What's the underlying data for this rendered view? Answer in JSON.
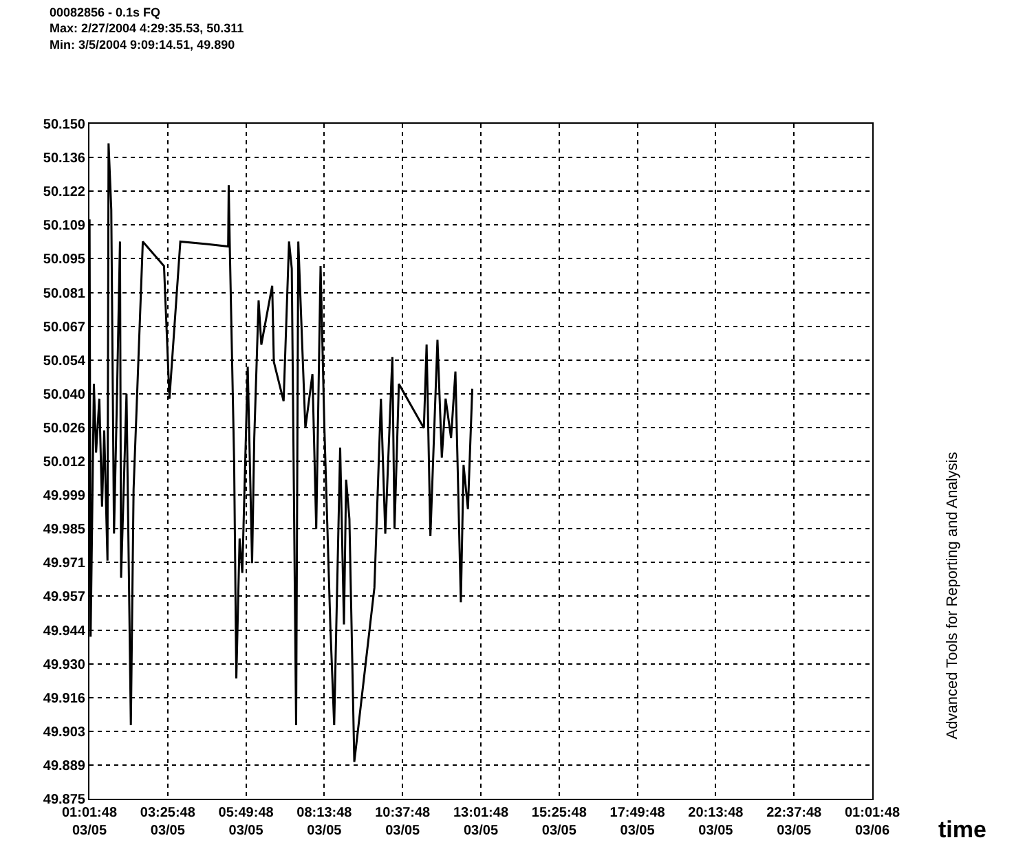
{
  "chart_data": {
    "type": "line",
    "title": "00082856 - 0.1s FQ",
    "subtitle": "Max: 2/27/2004 4:29:35.53, 50.311\nMin: 3/5/2004 9:09:14.51, 49.890",
    "xlabel": "time",
    "annotations": [
      "Advanced Tools for Reporting and Analysis"
    ],
    "grid": true,
    "marker": "none",
    "line_style": "solid",
    "xlim": [
      "2004-03-05T01:01:48",
      "2004-03-06T01:01:48"
    ],
    "xticks": [
      {
        "value": "2004-03-05T01:01:48",
        "label": "01:01:48\n03/05"
      },
      {
        "value": "2004-03-05T03:25:48",
        "label": "03:25:48\n03/05"
      },
      {
        "value": "2004-03-05T05:49:48",
        "label": "05:49:48\n03/05"
      },
      {
        "value": "2004-03-05T08:13:48",
        "label": "08:13:48\n03/05"
      },
      {
        "value": "2004-03-05T10:37:48",
        "label": "10:37:48\n03/05"
      },
      {
        "value": "2004-03-05T13:01:48",
        "label": "13:01:48\n03/05"
      },
      {
        "value": "2004-03-05T15:25:48",
        "label": "15:25:48\n03/05"
      },
      {
        "value": "2004-03-05T17:49:48",
        "label": "17:49:48\n03/05"
      },
      {
        "value": "2004-03-05T20:13:48",
        "label": "20:13:48\n03/05"
      },
      {
        "value": "2004-03-05T22:37:48",
        "label": "22:37:48\n03/05"
      },
      {
        "value": "2004-03-06T01:01:48",
        "label": "01:01:48\n03/06"
      }
    ],
    "ylim": [
      49.875,
      50.15
    ],
    "yticks": [
      {
        "value": 49.875,
        "label": "49.875"
      },
      {
        "value": 49.88875,
        "label": "49.889"
      },
      {
        "value": 49.9025,
        "label": "49.903"
      },
      {
        "value": 49.91625,
        "label": "49.916"
      },
      {
        "value": 49.93,
        "label": "49.930"
      },
      {
        "value": 49.94375,
        "label": "49.944"
      },
      {
        "value": 49.9575,
        "label": "49.957"
      },
      {
        "value": 49.97125,
        "label": "49.971"
      },
      {
        "value": 49.985,
        "label": "49.985"
      },
      {
        "value": 49.99875,
        "label": "49.999"
      },
      {
        "value": 50.0125,
        "label": "50.012"
      },
      {
        "value": 50.02625,
        "label": "50.026"
      },
      {
        "value": 50.04,
        "label": "50.040"
      },
      {
        "value": 50.05375,
        "label": "50.054"
      },
      {
        "value": 50.0675,
        "label": "50.067"
      },
      {
        "value": 50.08125,
        "label": "50.081"
      },
      {
        "value": 50.095,
        "label": "50.095"
      },
      {
        "value": 50.10875,
        "label": "50.109"
      },
      {
        "value": 50.1225,
        "label": "50.122"
      },
      {
        "value": 50.13625,
        "label": "50.136"
      },
      {
        "value": 50.15,
        "label": "50.150"
      }
    ],
    "series": [
      {
        "color": "#000000",
        "x": [
          "2004-03-05T01:02",
          "2004-03-05T01:04",
          "2004-03-05T01:10",
          "2004-03-05T01:14",
          "2004-03-05T01:20",
          "2004-03-05T01:25",
          "2004-03-05T01:29",
          "2004-03-05T01:35",
          "2004-03-05T01:37",
          "2004-03-05T01:42",
          "2004-03-05T01:47",
          "2004-03-05T01:52",
          "2004-03-05T01:58",
          "2004-03-05T02:00",
          "2004-03-05T02:10",
          "2004-03-05T02:18",
          "2004-03-05T02:23",
          "2004-03-05T02:40",
          "2004-03-05T03:19",
          "2004-03-05T03:29",
          "2004-03-05T03:49",
          "2004-03-05T04:37",
          "2004-03-05T05:17",
          "2004-03-05T05:18",
          "2004-03-05T05:20",
          "2004-03-05T05:28",
          "2004-03-05T05:32",
          "2004-03-05T05:38",
          "2004-03-05T05:43",
          "2004-03-05T05:53",
          "2004-03-05T06:01",
          "2004-03-05T06:05",
          "2004-03-05T06:13",
          "2004-03-05T06:18",
          "2004-03-05T06:38",
          "2004-03-05T06:41",
          "2004-03-05T06:59",
          "2004-03-05T07:09",
          "2004-03-05T07:14",
          "2004-03-05T07:22",
          "2004-03-05T07:26",
          "2004-03-05T07:39",
          "2004-03-05T07:52",
          "2004-03-05T07:59",
          "2004-03-05T08:07",
          "2004-03-05T08:14",
          "2004-03-05T08:25",
          "2004-03-05T08:32",
          "2004-03-05T08:43",
          "2004-03-05T08:50",
          "2004-03-05T08:54",
          "2004-03-05T09:00",
          "2004-03-05T09:09",
          "2004-03-05T09:46",
          "2004-03-05T09:58",
          "2004-03-05T10:06",
          "2004-03-05T10:19",
          "2004-03-05T10:23",
          "2004-03-05T10:31",
          "2004-03-05T11:17",
          "2004-03-05T11:22",
          "2004-03-05T11:29",
          "2004-03-05T11:42",
          "2004-03-05T11:50",
          "2004-03-05T11:57",
          "2004-03-05T12:07",
          "2004-03-05T12:15",
          "2004-03-05T12:25",
          "2004-03-05T12:30",
          "2004-03-05T12:38",
          "2004-03-05T12:46"
        ],
        "values": [
          50.111,
          49.941,
          50.044,
          50.016,
          50.038,
          49.994,
          50.025,
          49.972,
          50.142,
          50.115,
          49.983,
          50.034,
          50.102,
          49.965,
          50.04,
          49.905,
          50.001,
          50.102,
          50.092,
          50.038,
          50.102,
          50.101,
          50.1,
          50.125,
          50.1,
          50.012,
          49.924,
          49.981,
          49.967,
          50.051,
          49.971,
          50.022,
          50.078,
          50.06,
          50.084,
          50.053,
          50.037,
          50.102,
          50.091,
          49.905,
          50.102,
          50.026,
          50.048,
          49.985,
          50.092,
          50.026,
          49.945,
          49.905,
          50.018,
          49.946,
          50.005,
          49.989,
          49.89,
          49.961,
          50.038,
          49.983,
          50.055,
          49.985,
          50.044,
          50.026,
          50.06,
          49.982,
          50.062,
          50.014,
          50.038,
          50.022,
          50.049,
          49.955,
          50.011,
          49.993,
          50.042
        ]
      }
    ]
  }
}
